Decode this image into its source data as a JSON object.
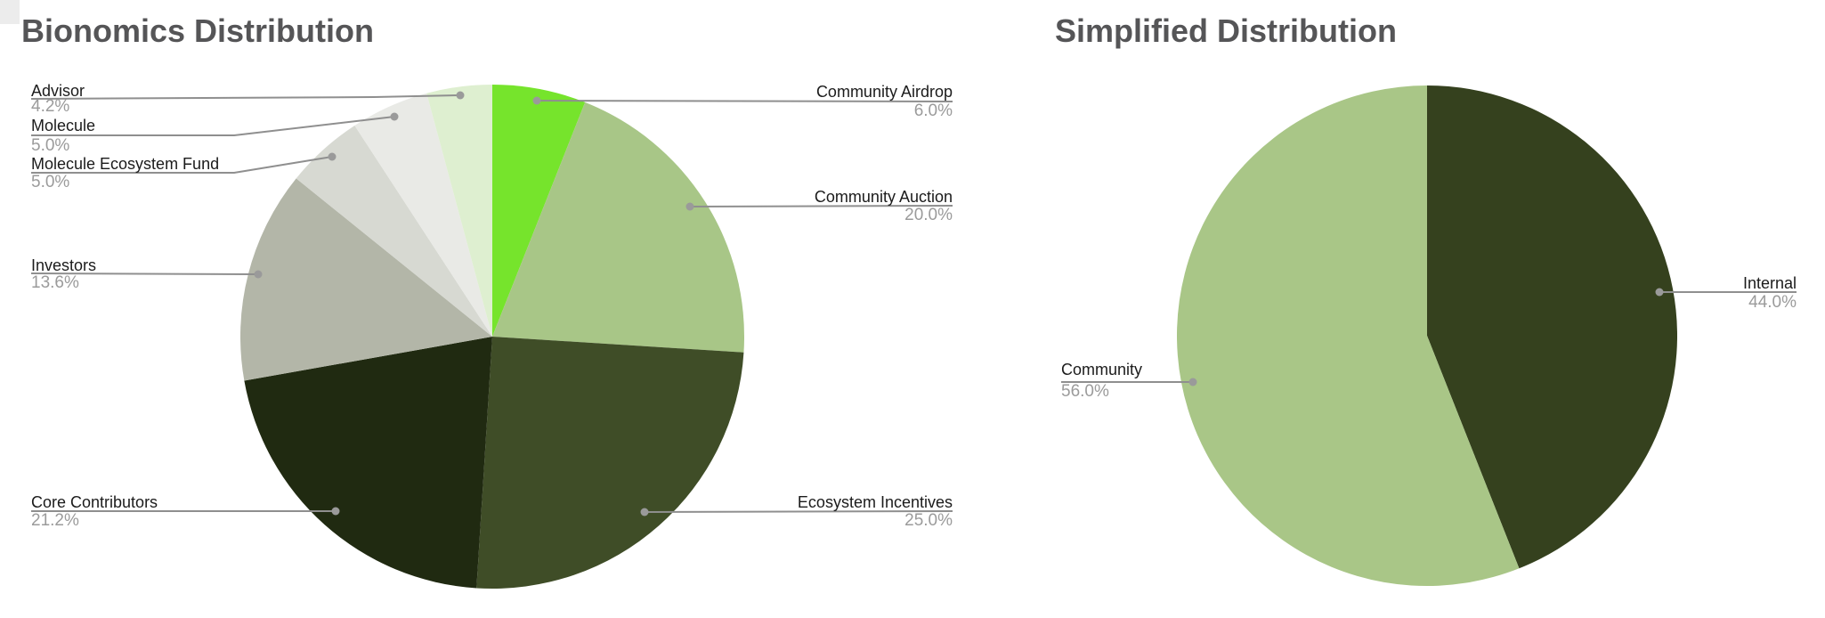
{
  "style": {
    "background": "#ffffff",
    "title_color": "#555557",
    "label_color": "#1b1b1b",
    "pct_color": "#9b9b9b",
    "leader_color": "#8f8f8f",
    "dot_color": "#9a9a9a",
    "corner_tile_color": "#ececec"
  },
  "chart_data": [
    {
      "type": "pie",
      "title": "Bionomics Distribution",
      "legend": "none",
      "labels_position": "outside",
      "start_angle_deg": 0,
      "direction": "clockwise",
      "categories": [
        "Community Airdrop",
        "Community Auction",
        "Ecosystem Incentives",
        "Core Contributors",
        "Investors",
        "Molecule Ecosystem Fund",
        "Molecule",
        "Advisor"
      ],
      "values": [
        6.0,
        20.0,
        25.0,
        21.2,
        13.6,
        5.0,
        5.0,
        4.2
      ],
      "slices": [
        {
          "label": "Community Airdrop",
          "value": 6.0,
          "pct": "6.0%",
          "color": "#76E42C"
        },
        {
          "label": "Community Auction",
          "value": 20.0,
          "pct": "20.0%",
          "color": "#A8C687"
        },
        {
          "label": "Ecosystem Incentives",
          "value": 25.0,
          "pct": "25.0%",
          "color": "#3F4D27"
        },
        {
          "label": "Core Contributors",
          "value": 21.2,
          "pct": "21.2%",
          "color": "#202A11"
        },
        {
          "label": "Investors",
          "value": 13.6,
          "pct": "13.6%",
          "color": "#B3B6A8"
        },
        {
          "label": "Molecule Ecosystem Fund",
          "value": 5.0,
          "pct": "5.0%",
          "color": "#D7D9D2"
        },
        {
          "label": "Molecule",
          "value": 5.0,
          "pct": "5.0%",
          "color": "#E9EAE6"
        },
        {
          "label": "Advisor",
          "value": 4.2,
          "pct": "4.2%",
          "color": "#DEEFD0"
        }
      ]
    },
    {
      "type": "pie",
      "title": "Simplified Distribution",
      "legend": "none",
      "labels_position": "outside",
      "start_angle_deg": 0,
      "direction": "clockwise",
      "categories": [
        "Internal",
        "Community"
      ],
      "values": [
        44.0,
        56.0
      ],
      "slices": [
        {
          "label": "Internal",
          "value": 44.0,
          "pct": "44.0%",
          "color": "#35411E"
        },
        {
          "label": "Community",
          "value": 56.0,
          "pct": "56.0%",
          "color": "#A9C687"
        }
      ]
    }
  ]
}
